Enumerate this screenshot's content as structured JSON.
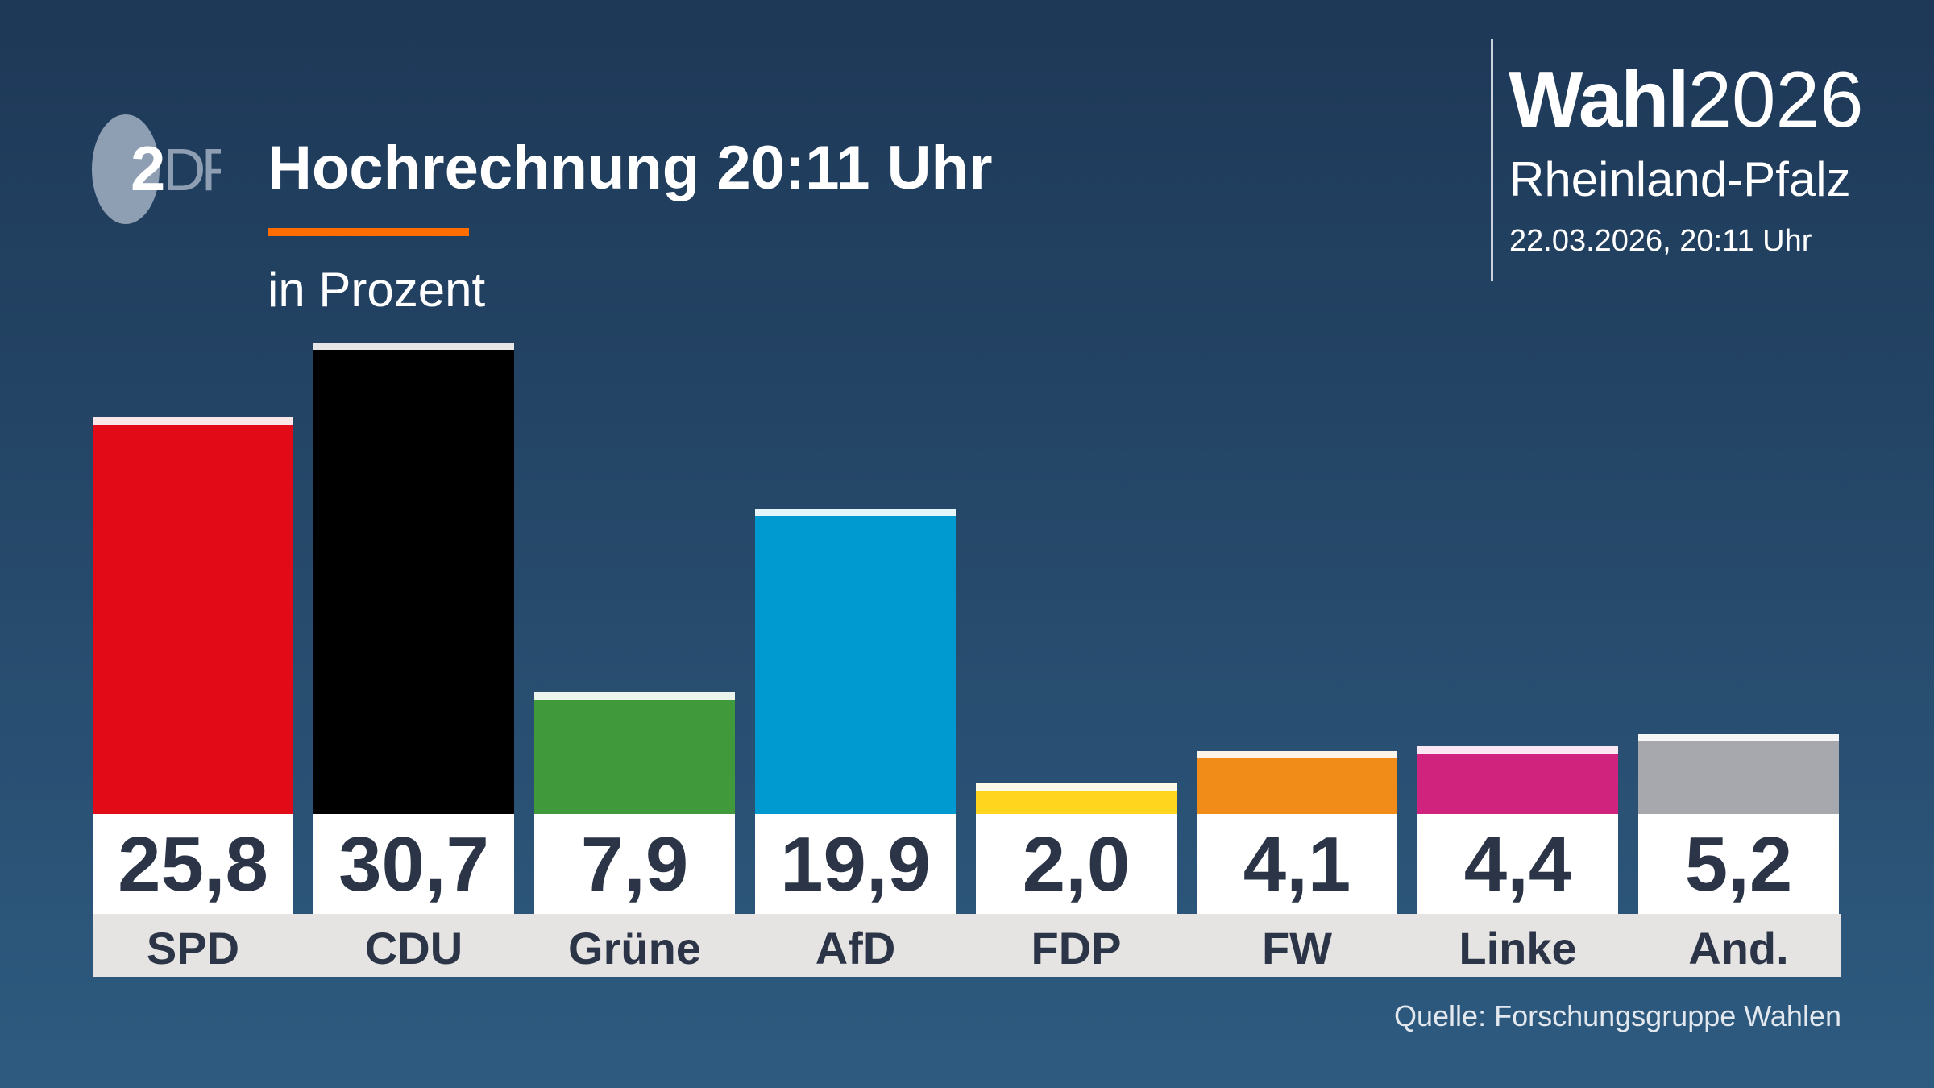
{
  "header": {
    "logo": "ZDF",
    "title": "Hochrechnung 20:11 Uhr",
    "subtitle": "in Prozent",
    "brand_bold": "Wahl",
    "brand_year": "2026",
    "region": "Rheinland-Pfalz",
    "datetime": "22.03.2026, 20:11 Uhr"
  },
  "colors": {
    "accent": "#ff6d00",
    "value_text": "#2b3547",
    "label_band": "#e6e4e2"
  },
  "source": "Quelle: Forschungsgruppe Wahlen",
  "chart_data": {
    "type": "bar",
    "title": "Hochrechnung 20:11 Uhr",
    "ylabel": "in Prozent",
    "ylim": [
      0,
      30.7
    ],
    "grid": false,
    "categories": [
      "SPD",
      "CDU",
      "Grüne",
      "AfD",
      "FDP",
      "FW",
      "Linke",
      "And."
    ],
    "values": [
      25.8,
      30.7,
      7.9,
      19.9,
      2.0,
      4.1,
      4.4,
      5.2
    ],
    "value_labels": [
      "25,8",
      "30,7",
      "7,9",
      "19,9",
      "2,0",
      "4,1",
      "4,4",
      "5,2"
    ],
    "colors": [
      "#e30a17",
      "#000000",
      "#409a3c",
      "#009ad0",
      "#ffd51e",
      "#f28c18",
      "#cf237e",
      "#a6a8ae"
    ]
  }
}
